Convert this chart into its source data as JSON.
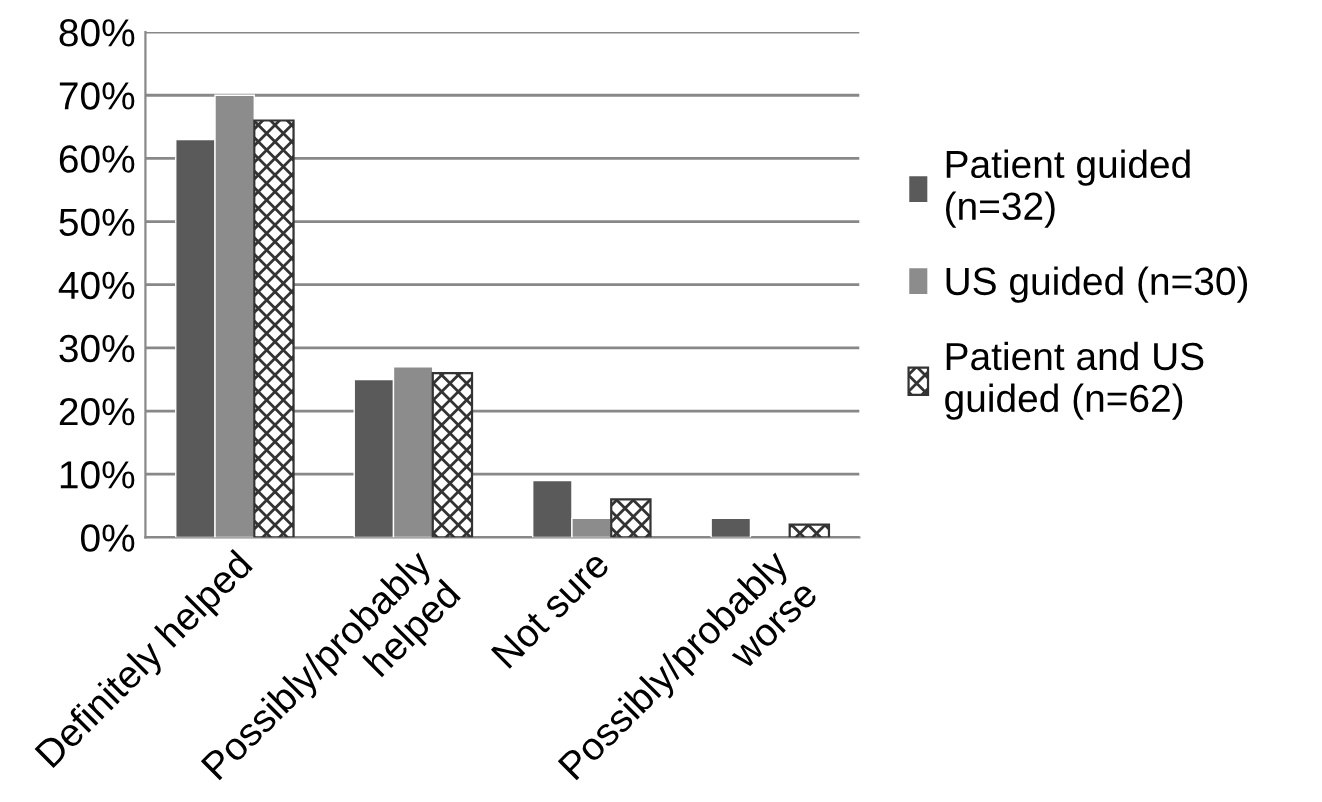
{
  "chart_data": {
    "type": "bar",
    "categories": [
      "Definitely helped",
      "Possibly/probably\nhelped",
      "Not sure",
      "Possibly/probably\nworse"
    ],
    "series": [
      {
        "name": "Patient guided\n(n=32)",
        "color": "#5a5a5a",
        "values": [
          63,
          25,
          9,
          3
        ]
      },
      {
        "name": "US guided (n=30)",
        "color": "#8c8c8c",
        "values": [
          70,
          27,
          3,
          null
        ]
      },
      {
        "name": "Patient and US\nguided (n=62)",
        "color": "#333333",
        "values": [
          66,
          26,
          6,
          2
        ]
      }
    ],
    "ylim": [
      0,
      80
    ],
    "yticks": [
      {
        "value": 0,
        "label": "0%"
      },
      {
        "value": 10,
        "label": "10%"
      },
      {
        "value": 20,
        "label": "20%"
      },
      {
        "value": 30,
        "label": "30%"
      },
      {
        "value": 40,
        "label": "40%"
      },
      {
        "value": 50,
        "label": "50%"
      },
      {
        "value": 60,
        "label": "60%"
      },
      {
        "value": 70,
        "label": "70%"
      },
      {
        "value": 80,
        "label": "80%"
      }
    ],
    "grid": "y",
    "legend": "right"
  }
}
